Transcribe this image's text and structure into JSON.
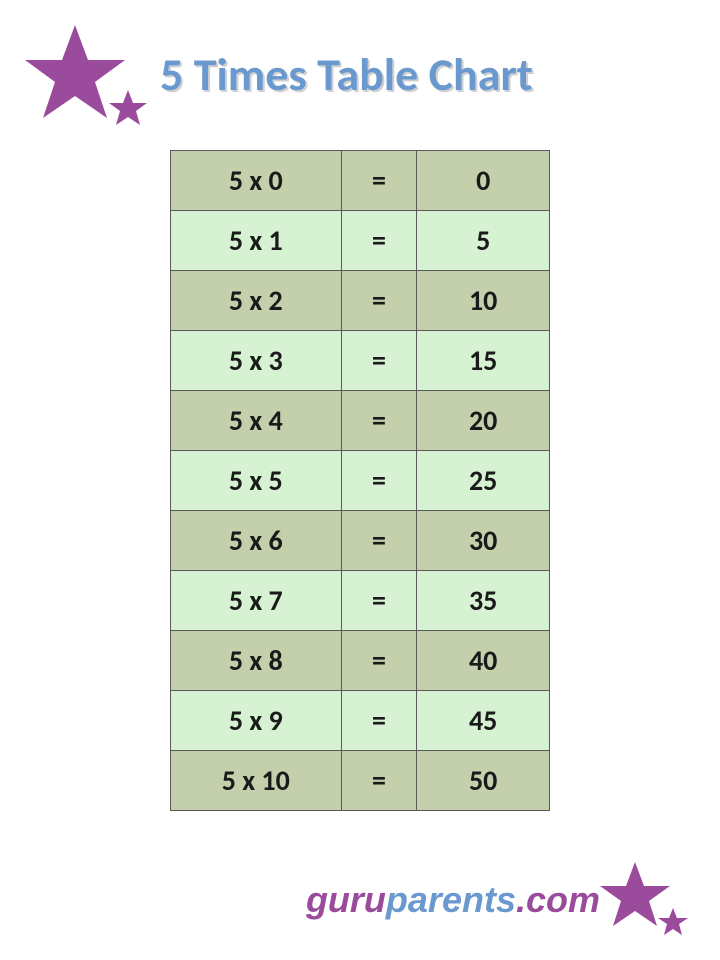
{
  "title": "5 Times Table Chart",
  "title_color": "#6a99d0",
  "title_fontsize": 46,
  "star_color": "#9b4b9b",
  "table": {
    "row_colors": {
      "even": "#c4cfab",
      "odd": "#d7f2d3"
    },
    "border_color": "#5a5a5a",
    "text_color": "#1a1a1a",
    "fontsize": 28,
    "rows": [
      {
        "expr": "5 x 0",
        "eq": "=",
        "result": "0"
      },
      {
        "expr": "5 x 1",
        "eq": "=",
        "result": "5"
      },
      {
        "expr": "5 x 2",
        "eq": "=",
        "result": "10"
      },
      {
        "expr": "5 x 3",
        "eq": "=",
        "result": "15"
      },
      {
        "expr": "5 x 4",
        "eq": "=",
        "result": "20"
      },
      {
        "expr": "5 x 5",
        "eq": "=",
        "result": "25"
      },
      {
        "expr": "5 x 6",
        "eq": "=",
        "result": "30"
      },
      {
        "expr": "5 x 7",
        "eq": "=",
        "result": "35"
      },
      {
        "expr": "5 x 8",
        "eq": "=",
        "result": "40"
      },
      {
        "expr": "5 x 9",
        "eq": "=",
        "result": "45"
      },
      {
        "expr": "5 x 10",
        "eq": "=",
        "result": "50"
      }
    ]
  },
  "footer": {
    "part1": "guru",
    "part2": "parents",
    "part3": ".com",
    "color1": "#9b4b9b",
    "color2": "#6a99d0"
  }
}
